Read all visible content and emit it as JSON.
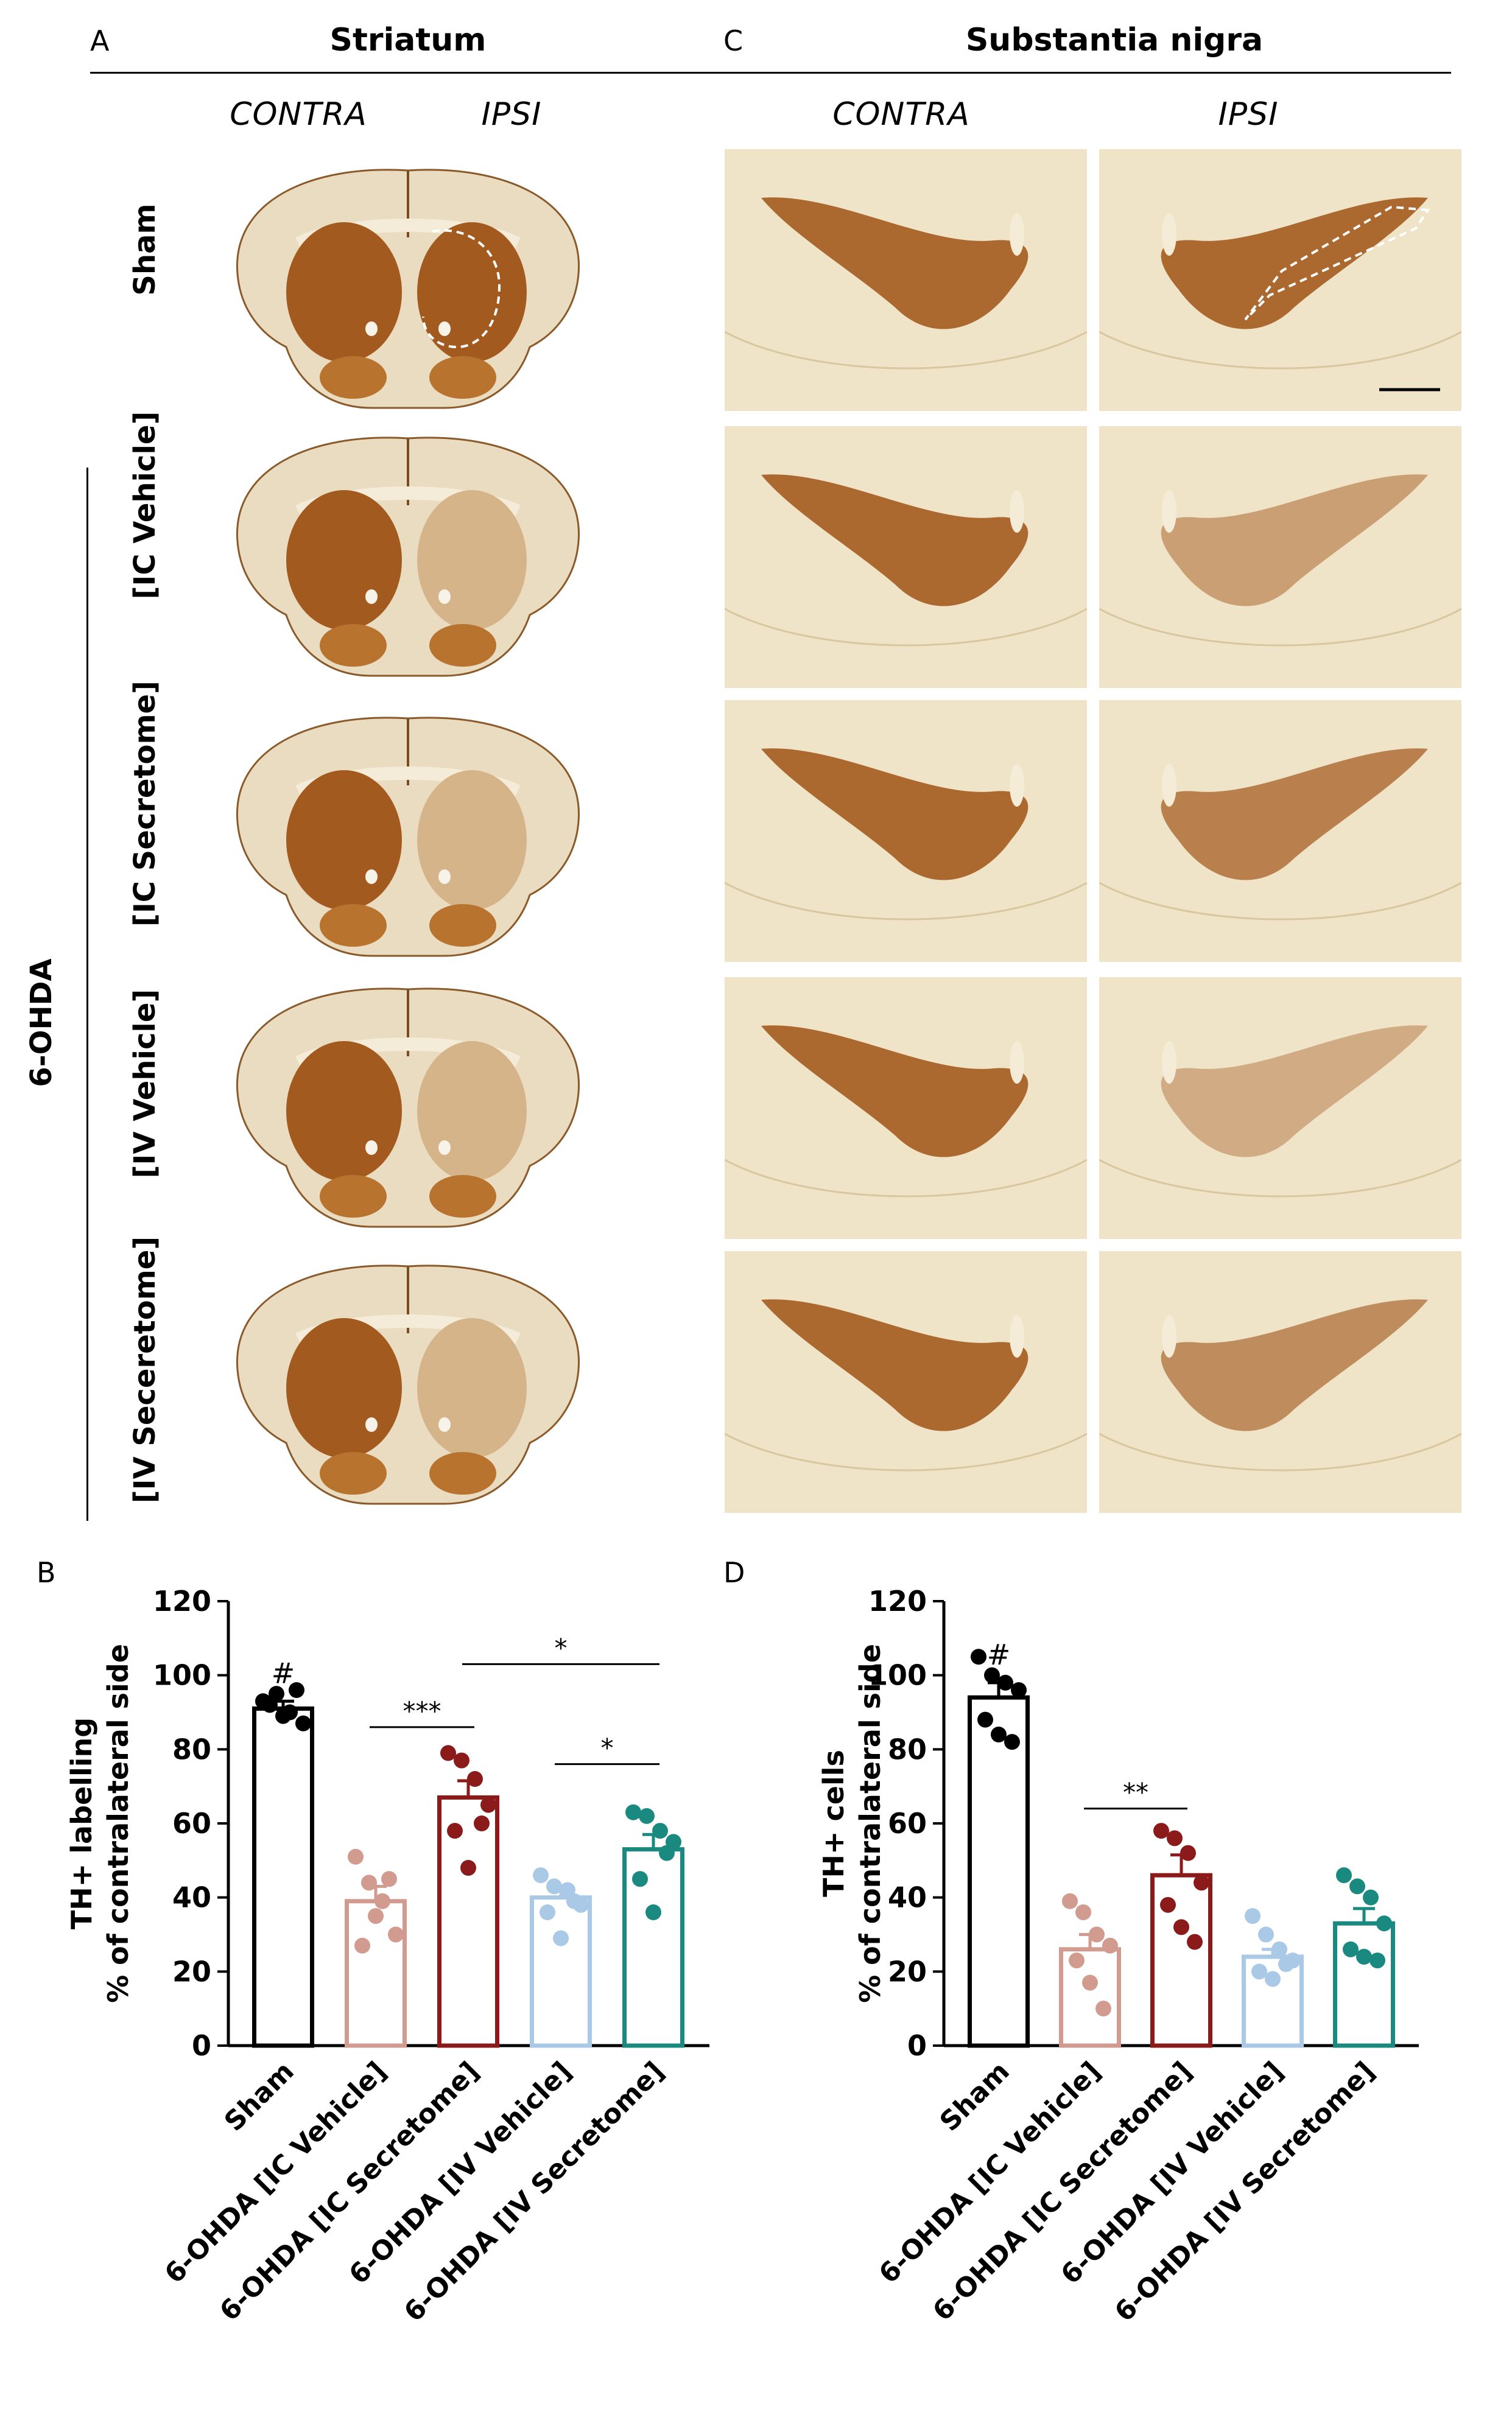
{
  "panels": {
    "A": {
      "letter": "A",
      "title": "Striatum",
      "col_labels": [
        "CONTRA",
        "IPSI"
      ]
    },
    "C": {
      "letter": "C",
      "title": "Substantia nigra",
      "col_labels": [
        "CONTRA",
        "IPSI"
      ]
    },
    "B": {
      "letter": "B"
    },
    "D": {
      "letter": "D"
    }
  },
  "row_labels": [
    "Sham",
    "[IC Vehicle]",
    "[IC Secretome]",
    "[IV Vehicle]",
    "[IV Seceretome]"
  ],
  "group_label": "6-OHDA",
  "colors": {
    "tissue_light": "#e9dcc0",
    "tissue_stain": "#a35a1e",
    "sham": "#000000",
    "ic_vehicle": "#d19b8f",
    "ic_secretome": "#8b1a1a",
    "iv_vehicle": "#a9c9e6",
    "iv_secretome": "#1a8a80"
  },
  "chart_data": [
    {
      "type": "bar",
      "panel": "B",
      "ylabel_line1": "TH+ labelling",
      "ylabel_line2": "% of contralateral side",
      "ylim": [
        0,
        120
      ],
      "yticks": [
        0,
        20,
        40,
        60,
        80,
        100,
        120
      ],
      "categories": [
        "Sham",
        "6-OHDA [IC Vehicle]",
        "6-OHDA [IC Secretome]",
        "6-OHDA [IV Vehicle]",
        "6-OHDA [IV Secretome]"
      ],
      "values": [
        91,
        39,
        67,
        40,
        53
      ],
      "sem": [
        2,
        4,
        4.5,
        3,
        4
      ],
      "points": [
        [
          93,
          95,
          90,
          87,
          92,
          89,
          96
        ],
        [
          51,
          44,
          39,
          30,
          27,
          35,
          45
        ],
        [
          79,
          77,
          72,
          65,
          58,
          48,
          60
        ],
        [
          46,
          43,
          42,
          38,
          36,
          29,
          39
        ],
        [
          63,
          62,
          58,
          55,
          45,
          36,
          52
        ]
      ],
      "annotations": [
        {
          "type": "hash",
          "bar": 0,
          "text": "#"
        },
        {
          "type": "bracket",
          "from": 1,
          "to": 2,
          "text": "***",
          "y": 86
        },
        {
          "type": "bracket",
          "from": 2,
          "to": 4,
          "text": "*",
          "y": 103
        },
        {
          "type": "bracket",
          "from": 3,
          "to": 4,
          "text": "*",
          "y": 76
        }
      ]
    },
    {
      "type": "bar",
      "panel": "D",
      "ylabel_line1": "TH+ cells",
      "ylabel_line2": "% of contralateral side",
      "ylim": [
        0,
        120
      ],
      "yticks": [
        0,
        20,
        40,
        60,
        80,
        100,
        120
      ],
      "categories": [
        "Sham",
        "6-OHDA [IC Vehicle]",
        "6-OHDA [IC Secretome]",
        "6-OHDA [IV Vehicle]",
        "6-OHDA [IV Secretome]"
      ],
      "values": [
        94,
        26,
        46,
        24,
        33
      ],
      "sem": [
        4,
        4,
        5.5,
        2,
        4
      ],
      "points": [
        [
          105,
          100,
          98,
          96,
          88,
          84,
          82
        ],
        [
          39,
          36,
          30,
          27,
          23,
          17,
          10
        ],
        [
          58,
          56,
          52,
          44,
          38,
          32,
          28
        ],
        [
          35,
          30,
          26,
          23,
          20,
          18,
          22
        ],
        [
          46,
          43,
          40,
          33,
          26,
          24,
          23
        ]
      ],
      "annotations": [
        {
          "type": "hash",
          "bar": 0,
          "text": "#"
        },
        {
          "type": "bracket",
          "from": 1,
          "to": 2,
          "text": "**",
          "y": 64
        }
      ]
    }
  ]
}
